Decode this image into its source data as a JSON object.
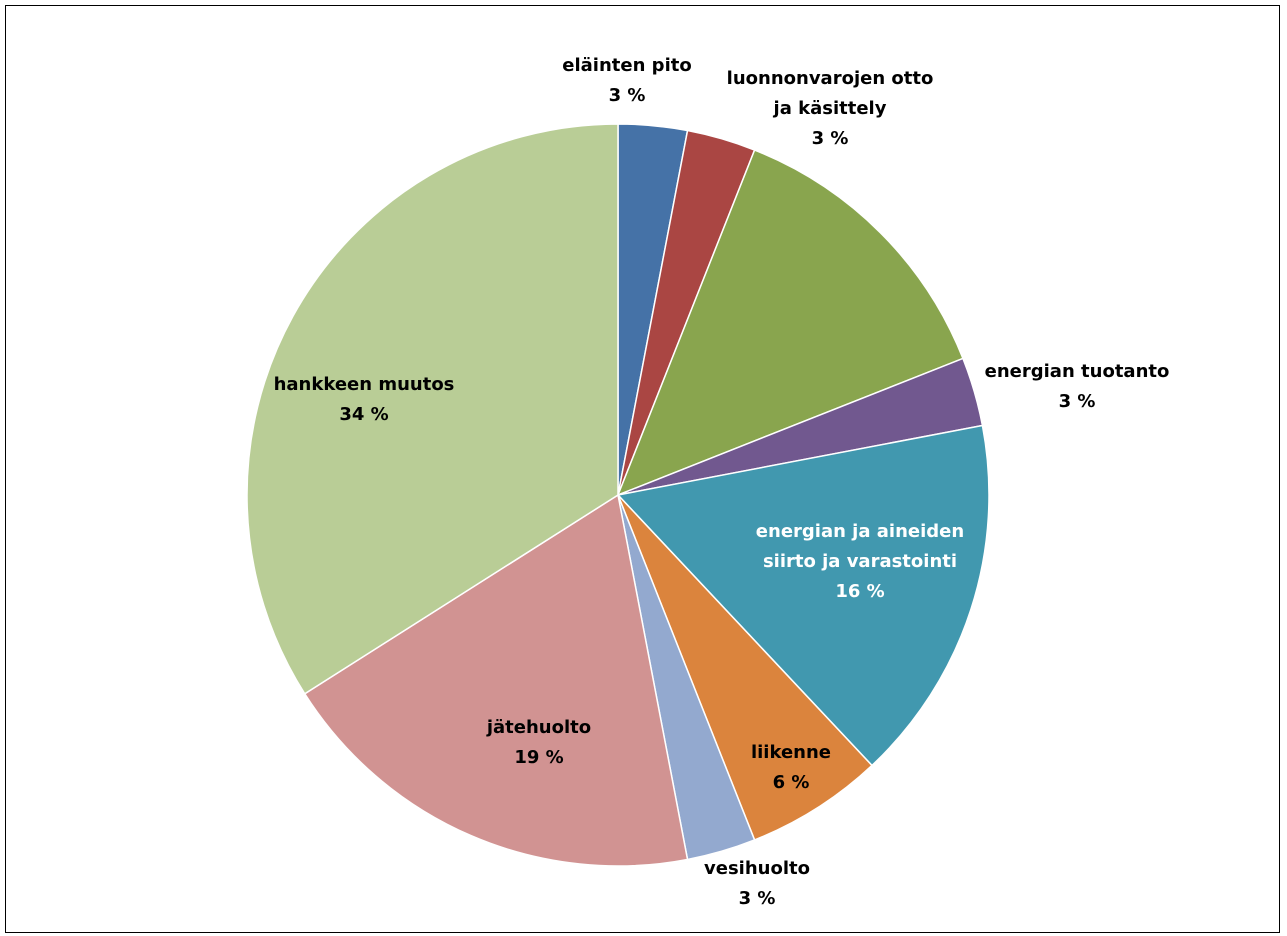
{
  "chart_data": {
    "type": "pie",
    "title": "",
    "slices": [
      {
        "name": "eläinten pito",
        "value": 3,
        "label_lines": [
          "eläinten pito"
        ],
        "value_label": "3 %",
        "color": "#4572A7"
      },
      {
        "name": "luonnonvarojen otto ja käsittely",
        "value": 3,
        "label_lines": [
          "luonnonvarojen otto",
          "ja käsittely"
        ],
        "value_label": "3 %",
        "color": "#AA4643"
      },
      {
        "name": "",
        "value": 13,
        "label_lines": [],
        "value_label": "",
        "color": "#89A54E"
      },
      {
        "name": "energian tuotanto",
        "value": 3,
        "label_lines": [
          "energian tuotanto"
        ],
        "value_label": "3 %",
        "color": "#71588F"
      },
      {
        "name": "energian ja aineiden siirto ja varastointi",
        "value": 16,
        "label_lines": [
          "energian ja aineiden",
          "siirto ja varastointi"
        ],
        "value_label": "16 %",
        "color": "#4198AF",
        "label_color": "#ffffff"
      },
      {
        "name": "liikenne",
        "value": 6,
        "label_lines": [
          "liikenne"
        ],
        "value_label": "6 %",
        "color": "#DB843D"
      },
      {
        "name": "vesihuolto",
        "value": 3,
        "label_lines": [
          "vesihuolto"
        ],
        "value_label": "3 %",
        "color": "#93A9CF"
      },
      {
        "name": "jätehuolto",
        "value": 19,
        "label_lines": [
          "jätehuolto"
        ],
        "value_label": "19 %",
        "color": "#D19392"
      },
      {
        "name": "hankkeen muutos",
        "value": 34,
        "label_lines": [
          "hankkeen muutos"
        ],
        "value_label": "34 %",
        "color": "#B9CD96"
      }
    ],
    "legend": "none"
  }
}
